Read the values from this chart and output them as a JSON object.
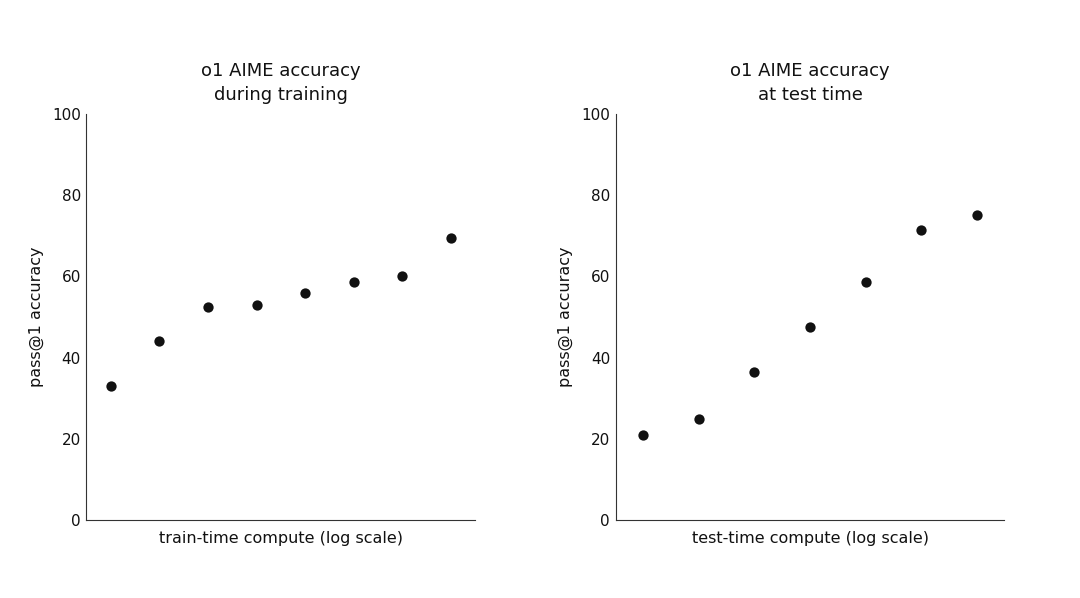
{
  "left_title": "o1 AIME accuracy\nduring training",
  "right_title": "o1 AIME accuracy\nat test time",
  "left_xlabel": "train-time compute (log scale)",
  "right_xlabel": "test-time compute (log scale)",
  "ylabel": "pass@1 accuracy",
  "left_x": [
    1,
    2,
    3,
    4,
    5,
    6,
    7,
    8
  ],
  "left_y": [
    33,
    44,
    52.5,
    53,
    56,
    58.5,
    60,
    69.5
  ],
  "right_x": [
    1,
    2,
    3,
    4,
    5,
    6,
    7
  ],
  "right_y": [
    21,
    25,
    36.5,
    47.5,
    58.5,
    71.5,
    75
  ],
  "ylim": [
    0,
    100
  ],
  "yticks": [
    0,
    20,
    40,
    60,
    80,
    100
  ],
  "dot_color": "#111111",
  "dot_size": 55,
  "background_color": "#ffffff",
  "title_fontsize": 13,
  "label_fontsize": 11.5,
  "tick_fontsize": 11
}
